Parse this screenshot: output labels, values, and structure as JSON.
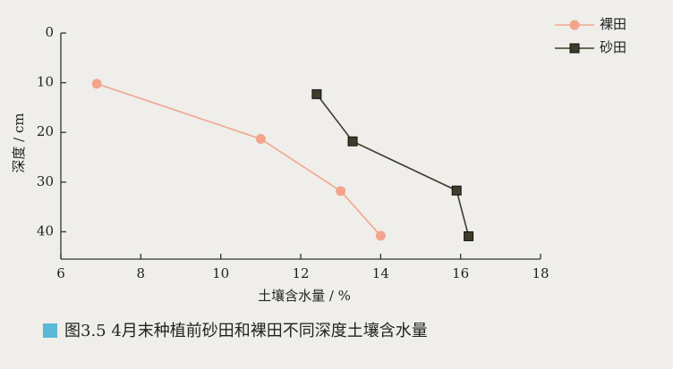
{
  "chart_data": {
    "type": "line",
    "x_label": "土壤含水量 / %",
    "y_label": "深度 / cm",
    "caption": "图3.5   4月末种植前砂田和裸田不同深度土壤含水量",
    "xlim": [
      6,
      18
    ],
    "xticks": [
      6,
      8,
      10,
      12,
      14,
      16,
      18
    ],
    "ylim": [
      0,
      45.5
    ],
    "yticks": [
      0,
      10,
      20,
      30,
      40
    ],
    "y_inverted": true,
    "legend": "upper right",
    "series": [
      {
        "name": "裸田",
        "color": "#f2a58c",
        "marker": "circle",
        "x": [
          6.9,
          11.0,
          13.0,
          14.0
        ],
        "values": [
          10.2,
          21.3,
          31.8,
          40.8
        ]
      },
      {
        "name": "砂田",
        "color": "#3d3d2a",
        "marker": "square",
        "x": [
          12.4,
          13.3,
          15.9,
          16.2
        ],
        "values": [
          12.3,
          21.8,
          31.7,
          40.9
        ]
      }
    ]
  }
}
